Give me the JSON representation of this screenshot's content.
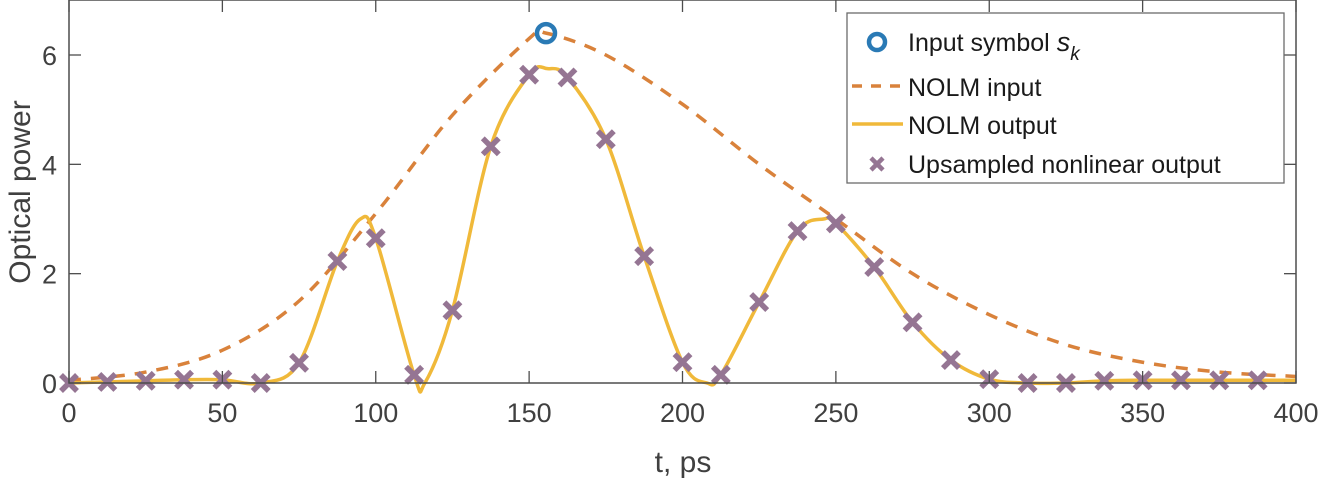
{
  "chart_data": {
    "type": "line",
    "title": "",
    "xlabel": "t, ps",
    "ylabel": "Optical power",
    "xlim": [
      0,
      400
    ],
    "ylim": [
      0,
      7
    ],
    "xticks": [
      0,
      50,
      100,
      150,
      200,
      250,
      300,
      350,
      400
    ],
    "yticks": [
      0,
      2,
      4,
      6
    ],
    "grid": false,
    "legend_position": "upper right",
    "legend": [
      {
        "label": "Input symbol ",
        "label_italic": "s",
        "label_sub": "k",
        "style": "circle-marker",
        "color": "#2a7ab5"
      },
      {
        "label": "NOLM input",
        "style": "dashed-line",
        "color": "#d9823b"
      },
      {
        "label": "NOLM output",
        "style": "solid-line",
        "color": "#f0b93a"
      },
      {
        "label": "Upsampled nonlinear output",
        "style": "x-marker",
        "color": "#957593"
      }
    ],
    "series": [
      {
        "name": "Input symbol s_k",
        "type": "scatter",
        "marker": "o",
        "color": "#2a7ab5",
        "x": [
          155.5
        ],
        "y": [
          6.4
        ]
      },
      {
        "name": "NOLM input",
        "type": "line",
        "style": "dashed",
        "color": "#d9823b",
        "x": [
          0,
          25,
          50,
          75,
          100,
          125,
          150,
          155.5,
          175,
          200,
          225,
          250,
          275,
          300,
          325,
          350,
          375,
          400
        ],
        "y": [
          0.05,
          0.2,
          0.6,
          1.5,
          3.1,
          4.9,
          6.3,
          6.4,
          6.0,
          5.1,
          4.0,
          3.0,
          2.0,
          1.25,
          0.7,
          0.38,
          0.2,
          0.12
        ]
      },
      {
        "name": "NOLM output",
        "type": "line",
        "style": "solid",
        "color": "#f0b93a",
        "x": [
          0,
          12.5,
          25,
          37.5,
          50,
          62.5,
          75,
          87.5,
          95,
          100,
          112.5,
          116,
          125,
          137.5,
          150,
          156,
          162.5,
          175,
          187.5,
          200,
          208,
          212.5,
          225,
          237.5,
          246,
          250,
          262.5,
          275,
          287.5,
          300,
          312.5,
          325,
          337.5,
          350,
          362.5,
          375,
          387.5,
          400
        ],
        "y": [
          0.0,
          0.02,
          0.04,
          0.06,
          0.06,
          0.0,
          0.37,
          2.23,
          3.0,
          2.65,
          0.15,
          0.0,
          1.33,
          4.33,
          5.64,
          5.75,
          5.59,
          4.46,
          2.32,
          0.38,
          0.0,
          0.15,
          1.48,
          2.78,
          3.0,
          2.92,
          2.12,
          1.11,
          0.42,
          0.07,
          0.0,
          0.0,
          0.04,
          0.05,
          0.05,
          0.05,
          0.05,
          0.05
        ]
      },
      {
        "name": "Upsampled nonlinear output",
        "type": "scatter",
        "marker": "x",
        "color": "#957593",
        "x": [
          0,
          12.5,
          25,
          37.5,
          50,
          62.5,
          75,
          87.5,
          100,
          112.5,
          125,
          137.5,
          150,
          162.5,
          175,
          187.5,
          200,
          212.5,
          225,
          237.5,
          250,
          262.5,
          275,
          287.5,
          300,
          312.5,
          325,
          337.5,
          350,
          362.5,
          375,
          387.5
        ],
        "y": [
          0.0,
          0.02,
          0.04,
          0.06,
          0.06,
          0.0,
          0.37,
          2.23,
          2.65,
          0.15,
          1.33,
          4.33,
          5.64,
          5.59,
          4.46,
          2.32,
          0.38,
          0.15,
          1.48,
          2.78,
          2.92,
          2.12,
          1.11,
          0.42,
          0.07,
          0.0,
          0.0,
          0.04,
          0.05,
          0.05,
          0.05,
          0.05
        ]
      }
    ]
  },
  "axes": {
    "xlabel": "t, ps",
    "ylabel": "Optical power",
    "xtick_labels": [
      "0",
      "50",
      "100",
      "150",
      "200",
      "250",
      "300",
      "350",
      "400"
    ],
    "ytick_labels": [
      "0",
      "2",
      "4",
      "6"
    ]
  },
  "legend": {
    "items": [
      {
        "label": "Input symbol ",
        "italic": "s",
        "sub": "k"
      },
      {
        "label": "NOLM input"
      },
      {
        "label": "NOLM output"
      },
      {
        "label": "Upsampled nonlinear output"
      }
    ]
  }
}
